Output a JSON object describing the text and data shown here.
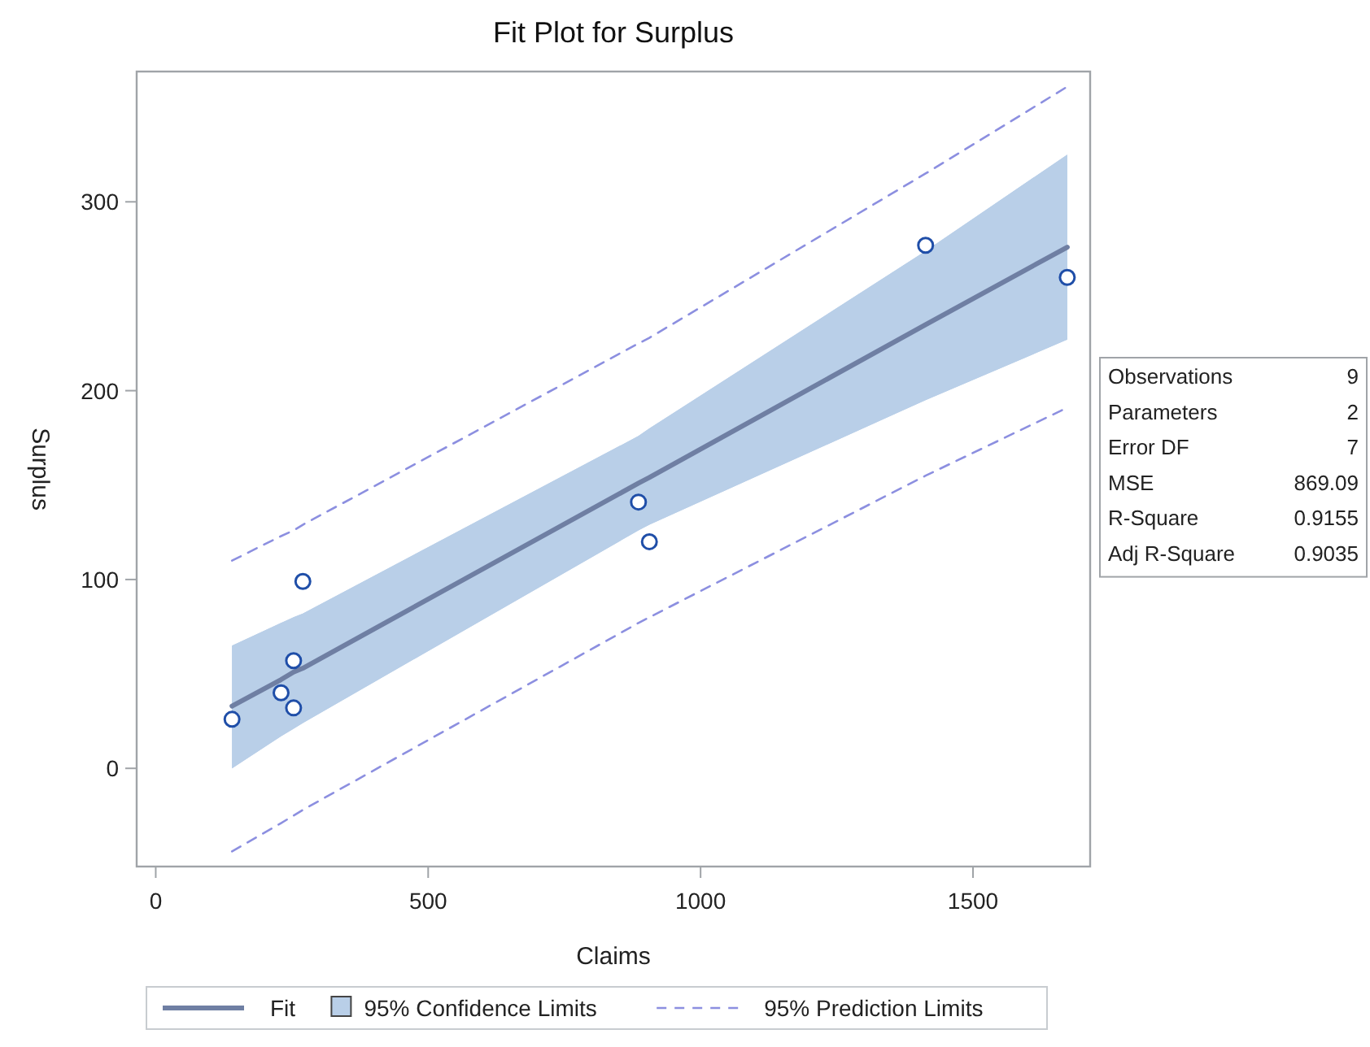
{
  "chart_data": {
    "type": "scatter",
    "title": "Fit Plot for Surplus",
    "xlabel": "Claims",
    "ylabel": "Surplus",
    "xlim": [
      -35,
      1715
    ],
    "xticks": [
      0,
      500,
      1000,
      1500
    ],
    "ylim": [
      -52,
      369
    ],
    "yticks": [
      0,
      100,
      200,
      300
    ],
    "grid": false,
    "legend": "bottom",
    "series": [
      {
        "type": "line",
        "name": "Fit",
        "color": "#6f7fa3",
        "line_style": "solid",
        "marker": "none",
        "x": [
          140,
          230,
          253,
          270,
          886,
          906,
          1413,
          1673
        ],
        "values": [
          33,
          47,
          51,
          53,
          151,
          154,
          235,
          276
        ],
        "lower": [
          0,
          17,
          21,
          24,
          126,
          129,
          195,
          227
        ],
        "upper": [
          65,
          77,
          80,
          82,
          176,
          180,
          274,
          325
        ]
      },
      {
        "type": "area",
        "name": "95% Confidence Limits",
        "color": "#b9cfe8"
      },
      {
        "type": "line",
        "name": "95% Prediction Limits",
        "color": "#8c8fe0",
        "line_style": "dashed",
        "marker": "none",
        "x": [
          140,
          230,
          253,
          270,
          886,
          906,
          1413,
          1673
        ],
        "values": [
          110,
          123,
          126,
          129,
          225,
          228,
          315,
          361
        ]
      },
      {
        "type": "line",
        "color": "#8c8fe0",
        "line_style": "dashed",
        "marker": "none",
        "x": [
          140,
          230,
          253,
          270,
          886,
          906,
          1413,
          1673
        ],
        "values": [
          -44,
          -29,
          -25,
          -22,
          77,
          80,
          155,
          191
        ]
      },
      {
        "color": "#1f4ea8",
        "marker": "circle",
        "x": [
          140,
          230,
          253,
          253,
          270,
          886,
          906,
          1413,
          1673
        ],
        "values": [
          26,
          40,
          57,
          32,
          99,
          141,
          120,
          277,
          260
        ]
      }
    ],
    "annotations": [
      "Observations",
      "9",
      "Parameters",
      "2",
      "Error DF",
      "7",
      "MSE",
      "869.09",
      "R-Square",
      "0.9155",
      "Adj R-Square",
      "0.9035"
    ]
  }
}
